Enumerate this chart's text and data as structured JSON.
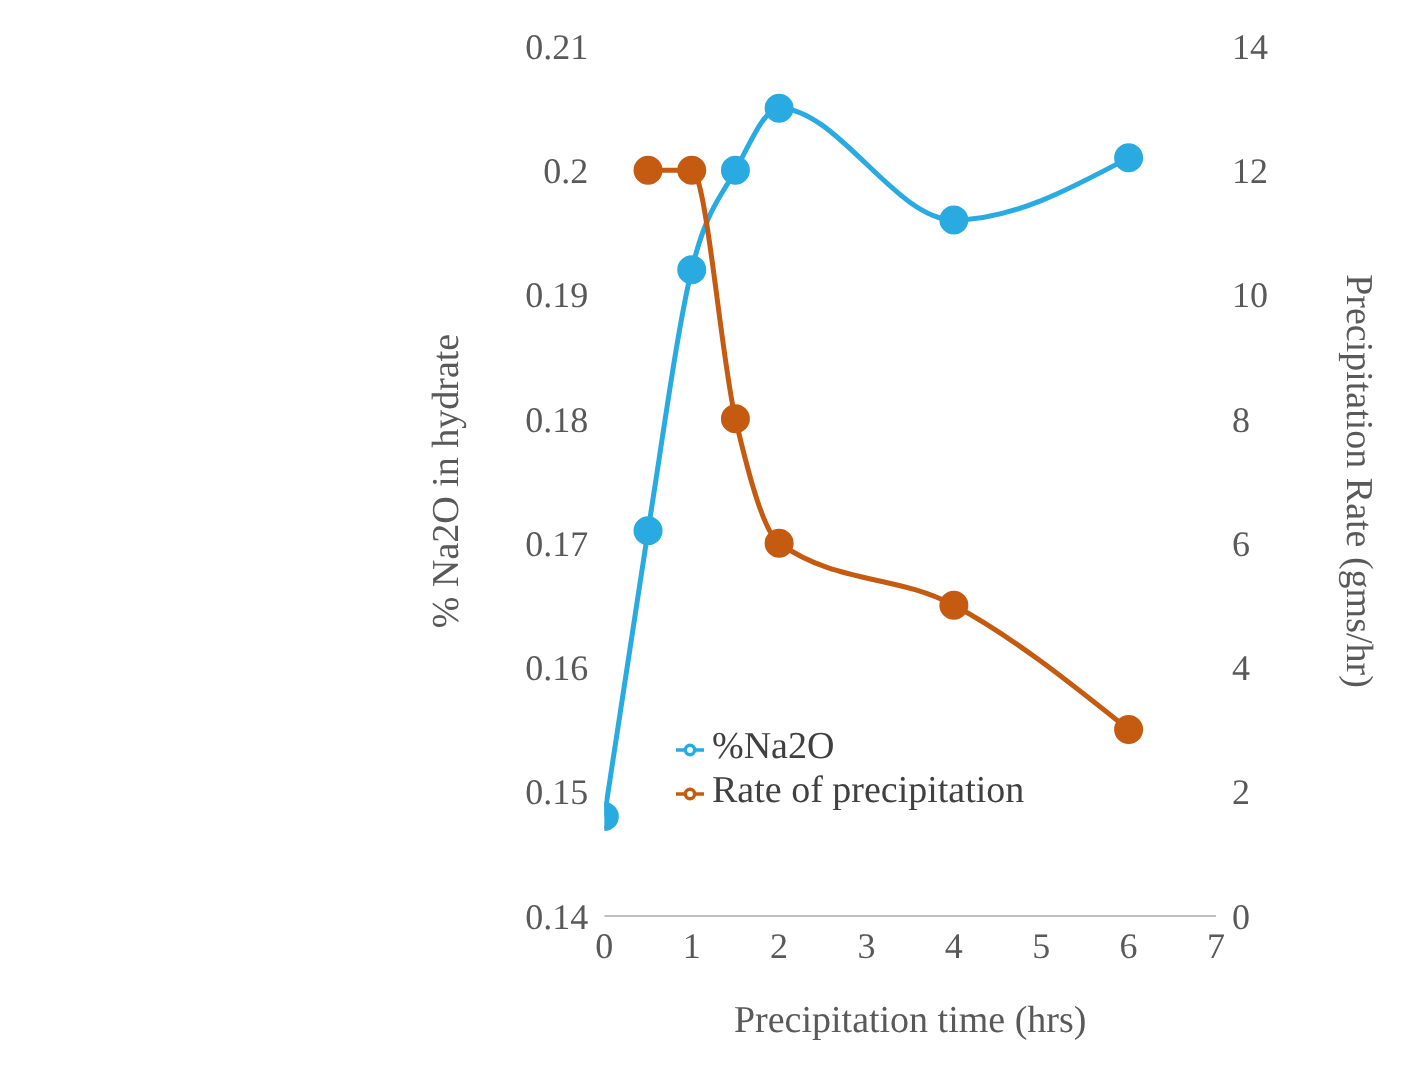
{
  "chart_data": {
    "type": "line",
    "xlabel": "Precipitation time (hrs)",
    "ylabel": "% Na2O in hydrate",
    "y2label": "Precipitation Rate (gms/hr)",
    "xlim": [
      0,
      7
    ],
    "xticks": [
      0,
      1,
      2,
      3,
      4,
      5,
      6,
      7
    ],
    "ylim": [
      0.14,
      0.21
    ],
    "yticks": [
      0.14,
      0.15,
      0.16,
      0.17,
      0.18,
      0.19,
      0.2,
      0.21
    ],
    "y2lim": [
      0,
      14
    ],
    "y2ticks": [
      0,
      2,
      4,
      6,
      8,
      10,
      12,
      14
    ],
    "grid": false,
    "legend": "bottom left",
    "marker": "circle",
    "line_style": "solid",
    "series": [
      {
        "name": "%Na2O",
        "color": "#29abe2",
        "x": [
          0,
          0.5,
          1,
          1.5,
          2,
          4,
          6
        ],
        "values": [
          0.148,
          0.171,
          0.192,
          0.2,
          0.205,
          0.196,
          0.201
        ]
      },
      {
        "name": "Rate of precipitation",
        "color": "#c55a11",
        "axis": "y2",
        "x": [
          0.5,
          1,
          1.5,
          2,
          4,
          6
        ],
        "values": [
          12,
          12,
          8,
          6,
          5,
          3
        ]
      }
    ]
  }
}
